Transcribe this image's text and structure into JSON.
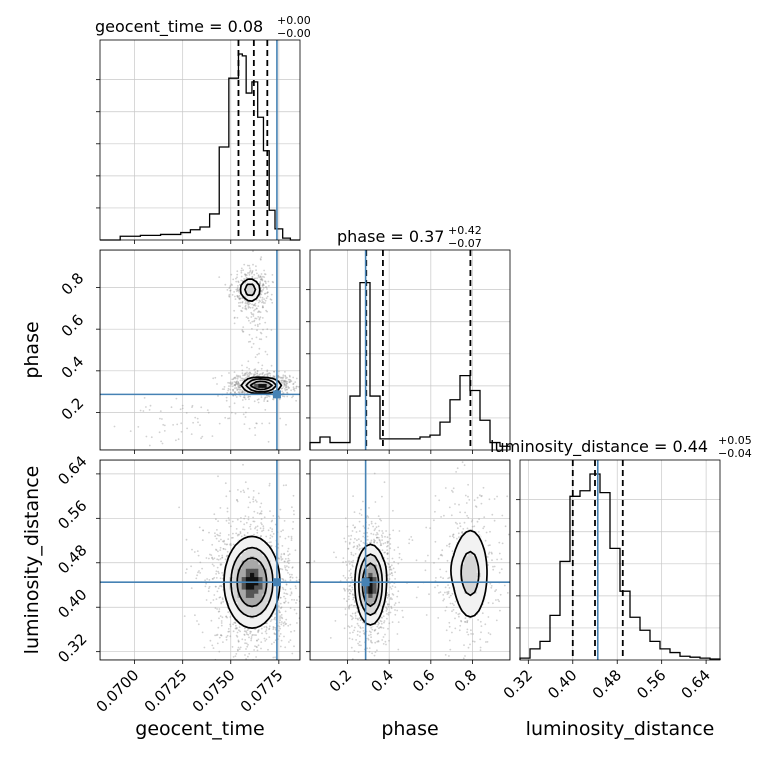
{
  "chart_data": {
    "type": "corner",
    "parameters": [
      "geocent_time",
      "phase",
      "luminosity_distance"
    ],
    "truths": {
      "geocent_time": 0.0774,
      "phase": 0.287,
      "luminosity_distance": 0.445
    },
    "titles": [
      {
        "param": "geocent_time",
        "text": "geocent_time = 0.08",
        "plus": "+0.00",
        "minus": "−0.00"
      },
      {
        "param": "phase",
        "text": "phase = 0.37",
        "plus": "+0.42",
        "minus": "−0.07"
      },
      {
        "param": "luminosity_distance",
        "text": "luminosity_distance = 0.44",
        "plus": "+0.05",
        "minus": "−0.04"
      }
    ],
    "axis_labels": {
      "geocent_time": "geocent_time",
      "phase": "phase",
      "luminosity_distance": "luminosity_distance"
    },
    "ranges": {
      "geocent_time": [
        0.0682,
        0.0786
      ],
      "phase": [
        0.02,
        0.98
      ],
      "luminosity_distance": [
        0.305,
        0.665
      ]
    },
    "ticks": {
      "geocent_time": [
        0.07,
        0.0725,
        0.075,
        0.0775
      ],
      "phase": [
        0.2,
        0.4,
        0.6,
        0.8
      ],
      "luminosity_distance": [
        0.32,
        0.4,
        0.48,
        0.56,
        0.64
      ]
    },
    "tick_labels": {
      "geocent_time": [
        "0.0700",
        "0.0725",
        "0.0750",
        "0.0775"
      ],
      "phase": [
        "0.2",
        "0.4",
        "0.6",
        "0.8"
      ],
      "luminosity_distance": [
        "0.32",
        "0.40",
        "0.48",
        "0.56",
        "0.64"
      ]
    },
    "quantiles": {
      "geocent_time": [
        0.0754,
        0.0762,
        0.0769
      ],
      "phase": [
        0.29,
        0.37,
        0.79
      ],
      "luminosity_distance": [
        0.4,
        0.44,
        0.49
      ]
    },
    "histograms": {
      "geocent_time": {
        "edges": [
          0.0682,
          0.06925,
          0.0703,
          0.07135,
          0.0724,
          0.0729,
          0.0734,
          0.0739,
          0.0744,
          0.0749,
          0.0754,
          0.0756,
          0.0758,
          0.0761,
          0.0764,
          0.0767,
          0.077,
          0.0773,
          0.0777,
          0.0781,
          0.0786
        ],
        "counts": [
          0,
          0.02,
          0.025,
          0.03,
          0.04,
          0.055,
          0.07,
          0.14,
          0.5,
          0.87,
          1.0,
          0.99,
          0.79,
          0.85,
          0.66,
          0.48,
          0.16,
          0.06,
          0.01,
          0
        ]
      },
      "phase": {
        "edges": [
          0.02,
          0.068,
          0.116,
          0.164,
          0.212,
          0.26,
          0.308,
          0.356,
          0.404,
          0.452,
          0.5,
          0.548,
          0.596,
          0.644,
          0.692,
          0.74,
          0.788,
          0.836,
          0.884,
          0.932,
          0.98
        ],
        "counts": [
          0.04,
          0.07,
          0.04,
          0.04,
          0.29,
          0.9,
          0.29,
          0.06,
          0.06,
          0.06,
          0.06,
          0.07,
          0.08,
          0.15,
          0.27,
          0.4,
          0.32,
          0.16,
          0.04,
          0.02
        ]
      },
      "luminosity_distance": {
        "edges": [
          0.305,
          0.323,
          0.341,
          0.359,
          0.377,
          0.395,
          0.413,
          0.431,
          0.449,
          0.467,
          0.485,
          0.503,
          0.521,
          0.539,
          0.557,
          0.575,
          0.593,
          0.611,
          0.629,
          0.647,
          0.665
        ],
        "counts": [
          0.01,
          0.06,
          0.1,
          0.24,
          0.53,
          0.88,
          0.91,
          1.0,
          0.9,
          0.6,
          0.37,
          0.23,
          0.16,
          0.1,
          0.06,
          0.04,
          0.02,
          0.015,
          0.01,
          0.005
        ]
      }
    },
    "densities": {
      "phase_vs_geocent_time": {
        "x": "geocent_time",
        "y": "phase",
        "modes": [
          {
            "x": 0.0766,
            "y": 0.33,
            "sx": 0.0005,
            "sy": 0.018,
            "w": 1.0
          },
          {
            "x": 0.076,
            "y": 0.79,
            "sx": 0.0003,
            "sy": 0.03,
            "w": 0.45
          },
          {
            "x": 0.0762,
            "y": 0.55,
            "sx": 0.0003,
            "sy": 0.12,
            "w": 0.12
          },
          {
            "x": 0.073,
            "y": 0.15,
            "sx": 0.0015,
            "sy": 0.05,
            "w": 0.07
          }
        ]
      },
      "luminosity_distance_vs_geocent_time": {
        "x": "geocent_time",
        "y": "luminosity_distance",
        "modes": [
          {
            "x": 0.0761,
            "y": 0.445,
            "sx": 0.0007,
            "sy": 0.04,
            "w": 1.0
          }
        ]
      },
      "luminosity_distance_vs_phase": {
        "x": "phase",
        "y": "luminosity_distance",
        "modes": [
          {
            "x": 0.31,
            "y": 0.44,
            "sx": 0.035,
            "sy": 0.035,
            "w": 1.0
          },
          {
            "x": 0.79,
            "y": 0.46,
            "sx": 0.05,
            "sy": 0.05,
            "w": 0.4
          },
          {
            "x": 0.55,
            "y": 0.47,
            "sx": 0.15,
            "sy": 0.03,
            "w": 0.08
          }
        ]
      }
    },
    "colors": {
      "truth": "#4682b4",
      "hist": "#000000",
      "contour": "#000000",
      "points": "#9a9a9a",
      "grid": "#c8c8c8"
    },
    "grid": true
  }
}
